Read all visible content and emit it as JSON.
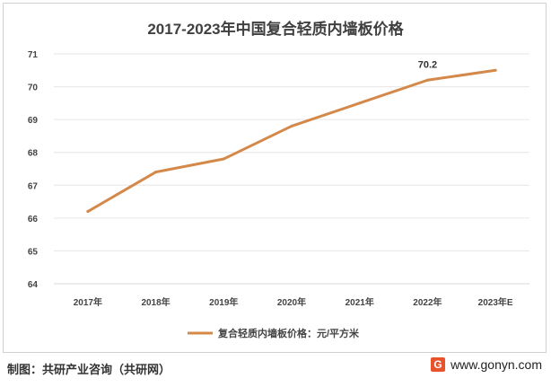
{
  "title": "2017-2023年中国复合轻质内墙板价格",
  "footer": {
    "source": "制图：共研产业咨询（共研网）",
    "website": "www.gonyn.com",
    "logo_letter": "G"
  },
  "chart_data": {
    "type": "line",
    "title": "2017-2023年中国复合轻质内墙板价格",
    "categories": [
      "2017年",
      "2018年",
      "2019年",
      "2020年",
      "2021年",
      "2022年",
      "2023年E"
    ],
    "series": [
      {
        "name": "复合轻质内墙板价格：元/平方米",
        "values": [
          66.2,
          67.4,
          67.8,
          68.8,
          69.5,
          70.2,
          70.5
        ],
        "color": "#d4894a"
      }
    ],
    "data_labels": [
      {
        "index": 5,
        "text": "70.2"
      }
    ],
    "yticks": [
      "64",
      "65",
      "66",
      "67",
      "68",
      "69",
      "70",
      "71"
    ],
    "ylim": [
      64,
      71
    ],
    "grid": true,
    "legend": "bottom-center"
  }
}
